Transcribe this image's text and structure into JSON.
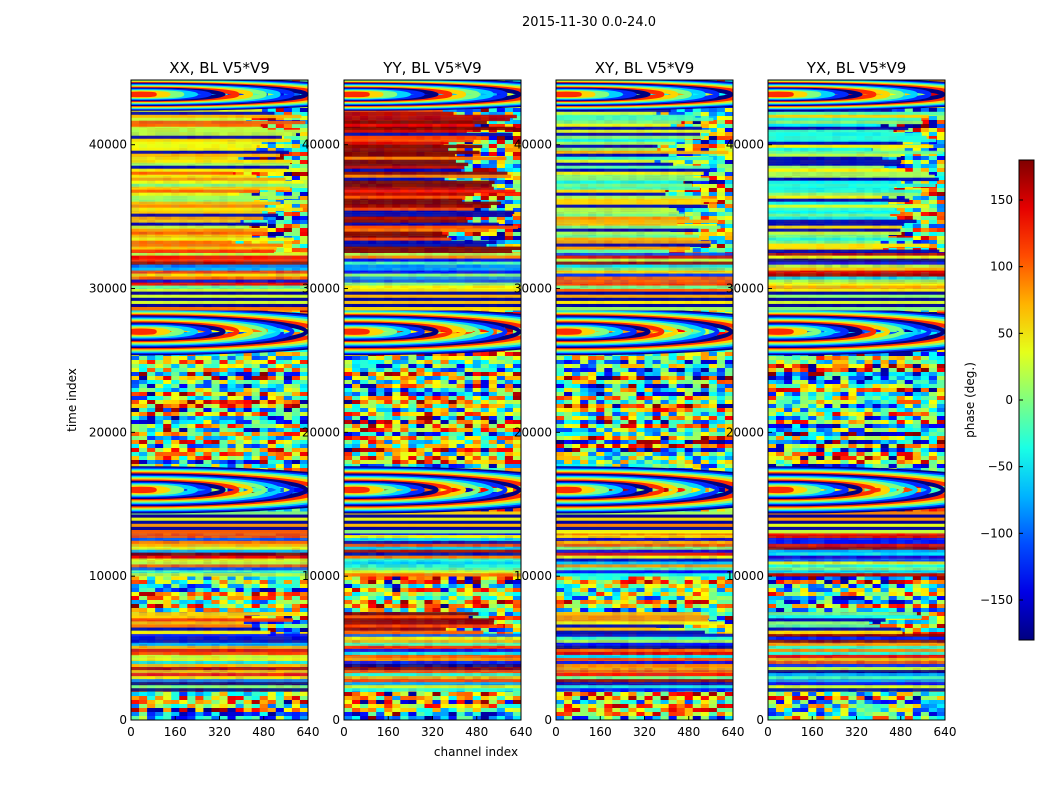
{
  "figure": {
    "suptitle": "2015-11-30 0.0-24.0"
  },
  "chart_data": {
    "type": "heatmap",
    "colormap": "jet",
    "shared_xlabel": "channel index",
    "shared_ylabel": "time index",
    "xlim": [
      0,
      640
    ],
    "ylim": [
      0,
      44500
    ],
    "xticks": [
      "0",
      "160",
      "320",
      "480",
      "640"
    ],
    "yticks": [
      "0",
      "10000",
      "20000",
      "30000",
      "40000"
    ],
    "panels": [
      {
        "title": "XX, BL V5*V9",
        "mean_phase_deg": 60
      },
      {
        "title": "YY, BL V5*V9",
        "mean_phase_deg": 150
      },
      {
        "title": "XY, BL V5*V9",
        "mean_phase_deg": 20
      },
      {
        "title": "YX, BL V5*V9",
        "mean_phase_deg": 0
      }
    ],
    "colorbar": {
      "label": "phase (deg.)",
      "range": [
        -180,
        180
      ],
      "ticks": [
        "150",
        "100",
        "50",
        "0",
        "−50",
        "−100",
        "−150"
      ]
    },
    "bands": [
      {
        "from": 0,
        "to": 2000,
        "kind": "noise"
      },
      {
        "from": 2000,
        "to": 6000,
        "kind": "stripes"
      },
      {
        "from": 6000,
        "to": 7500,
        "kind": "tinted"
      },
      {
        "from": 7500,
        "to": 10000,
        "kind": "noise"
      },
      {
        "from": 10000,
        "to": 14500,
        "kind": "stripes"
      },
      {
        "from": 13000,
        "to": 14500,
        "kind": "dark"
      },
      {
        "from": 14500,
        "to": 17500,
        "kind": "fringes"
      },
      {
        "from": 17500,
        "to": 25500,
        "kind": "noise"
      },
      {
        "from": 25500,
        "to": 28500,
        "kind": "fringes"
      },
      {
        "from": 28500,
        "to": 30000,
        "kind": "dark"
      },
      {
        "from": 30000,
        "to": 32500,
        "kind": "stripes"
      },
      {
        "from": 32500,
        "to": 42500,
        "kind": "tinted"
      },
      {
        "from": 42500,
        "to": 44500,
        "kind": "fringes"
      }
    ]
  }
}
